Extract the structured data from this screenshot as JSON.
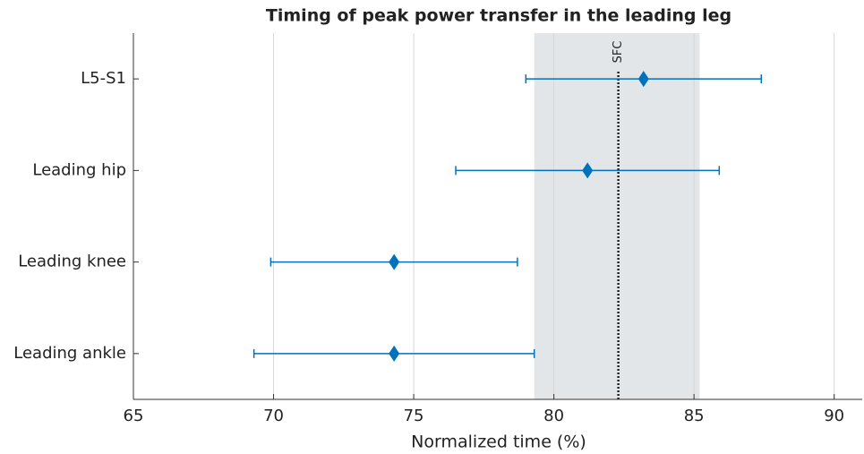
{
  "chart_data": {
    "type": "errorbar",
    "title": "Timing of peak power transfer in the leading leg",
    "xlabel": "Normalized time (%)",
    "categories": [
      "L5-S1",
      "Leading hip",
      "Leading knee",
      "Leading ankle"
    ],
    "values": [
      83.2,
      81.2,
      74.3,
      74.3
    ],
    "errors": [
      4.2,
      4.7,
      4.4,
      5.0
    ],
    "color": "#0072bd",
    "xlim": [
      65,
      91
    ],
    "xticks": [
      65,
      70,
      75,
      80,
      85,
      90
    ],
    "grid": true,
    "shaded_region": [
      79.3,
      85.2
    ],
    "reference_line": {
      "value": 82.3,
      "label": "SFC"
    }
  }
}
